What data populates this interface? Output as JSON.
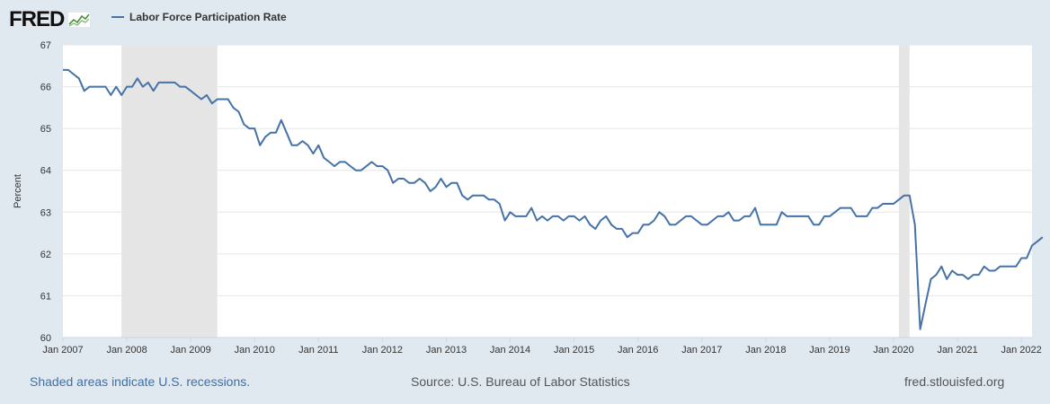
{
  "logo_text": "FRED",
  "legend_label": "Labor Force Participation Rate",
  "footer": {
    "recession_note": "Shaded areas indicate U.S. recessions.",
    "source": "Source: U.S. Bureau of Labor Statistics",
    "site": "fred.stlouisfed.org"
  },
  "colors": {
    "line": "#4572a7",
    "background": "#e1e9f0",
    "plot": "#ffffff",
    "recession": "#e5e5e5"
  },
  "chart_data": {
    "type": "line",
    "title": "",
    "xlabel": "",
    "ylabel": "Percent",
    "ylim": [
      60,
      67
    ],
    "yticks": [
      60,
      61,
      62,
      63,
      64,
      65,
      66,
      67
    ],
    "xticks": [
      "Jan 2007",
      "Jan 2008",
      "Jan 2009",
      "Jan 2010",
      "Jan 2011",
      "Jan 2012",
      "Jan 2013",
      "Jan 2014",
      "Jan 2015",
      "Jan 2016",
      "Jan 2017",
      "Jan 2018",
      "Jan 2019",
      "Jan 2020",
      "Jan 2021",
      "Jan 2022"
    ],
    "x_start": "Jan 2007",
    "x_end": "Mar 2022",
    "grid": "horizontal",
    "recessions": [
      {
        "start": "Dec 2007",
        "end": "Jun 2009"
      },
      {
        "start": "Feb 2020",
        "end": "Apr 2020"
      }
    ],
    "series": [
      {
        "name": "Labor Force Participation Rate",
        "values": [
          66.4,
          66.4,
          66.3,
          66.2,
          65.9,
          66.0,
          66.0,
          66.0,
          66.0,
          65.8,
          66.0,
          65.8,
          66.0,
          66.0,
          66.2,
          66.0,
          66.1,
          65.9,
          66.1,
          66.1,
          66.1,
          66.1,
          66.0,
          66.0,
          65.9,
          65.8,
          65.7,
          65.8,
          65.6,
          65.7,
          65.7,
          65.7,
          65.5,
          65.4,
          65.1,
          65.0,
          65.0,
          64.6,
          64.8,
          64.9,
          64.9,
          65.2,
          64.9,
          64.6,
          64.6,
          64.7,
          64.6,
          64.4,
          64.6,
          64.3,
          64.2,
          64.1,
          64.2,
          64.2,
          64.1,
          64.0,
          64.0,
          64.1,
          64.2,
          64.1,
          64.1,
          64.0,
          63.7,
          63.8,
          63.8,
          63.7,
          63.7,
          63.8,
          63.7,
          63.5,
          63.6,
          63.8,
          63.6,
          63.7,
          63.7,
          63.4,
          63.3,
          63.4,
          63.4,
          63.4,
          63.3,
          63.3,
          63.2,
          62.8,
          63.0,
          62.9,
          62.9,
          62.9,
          63.1,
          62.8,
          62.9,
          62.8,
          62.9,
          62.9,
          62.8,
          62.9,
          62.9,
          62.8,
          62.9,
          62.7,
          62.6,
          62.8,
          62.9,
          62.7,
          62.6,
          62.6,
          62.4,
          62.5,
          62.5,
          62.7,
          62.7,
          62.8,
          63.0,
          62.9,
          62.7,
          62.7,
          62.8,
          62.9,
          62.9,
          62.8,
          62.7,
          62.7,
          62.8,
          62.9,
          62.9,
          63.0,
          62.8,
          62.8,
          62.9,
          62.9,
          63.1,
          62.7,
          62.7,
          62.7,
          62.7,
          63.0,
          62.9,
          62.9,
          62.9,
          62.9,
          62.9,
          62.7,
          62.7,
          62.9,
          62.9,
          63.0,
          63.1,
          63.1,
          63.1,
          62.9,
          62.9,
          62.9,
          63.1,
          63.1,
          63.2,
          63.2,
          63.2,
          63.3,
          63.4,
          63.4,
          62.7,
          60.2,
          60.8,
          61.4,
          61.5,
          61.7,
          61.4,
          61.6,
          61.5,
          61.5,
          61.4,
          61.5,
          61.5,
          61.7,
          61.6,
          61.6,
          61.7,
          61.7,
          61.7,
          61.7,
          61.9,
          61.9,
          62.2,
          62.3,
          62.4
        ]
      }
    ]
  }
}
